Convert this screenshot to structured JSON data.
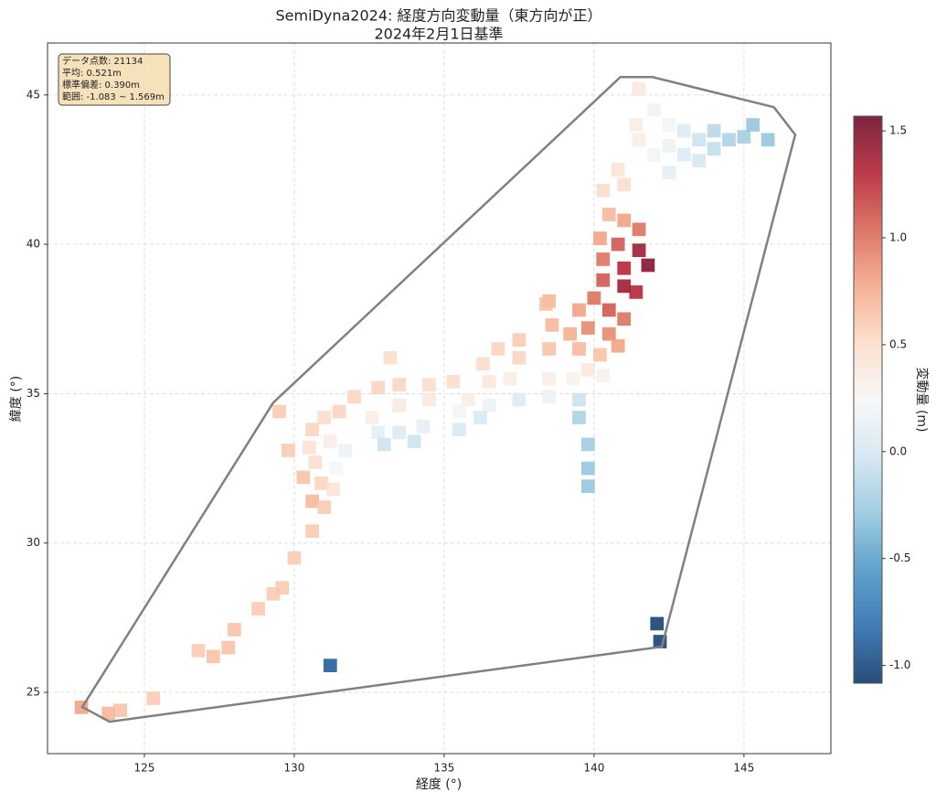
{
  "chart_data": {
    "type": "scatter",
    "title": "SemiDyna2024: 経度方向変動量（東方向が正）",
    "subtitle": "2024年2月1日基準",
    "xlabel": "経度 (°)",
    "ylabel": "緯度 (°)",
    "colorbar_label": "変動量 (m)",
    "stats": [
      "データ点数: 21134",
      "平均: 0.521m",
      "標準偏差: 0.390m",
      "範囲: -1.083 ~ 1.569m"
    ],
    "xlim": [
      121.77,
      147.9
    ],
    "ylim": [
      22.95,
      46.74
    ],
    "xticks": [
      125,
      130,
      135,
      140,
      145
    ],
    "yticks": [
      25,
      30,
      35,
      40,
      45
    ],
    "grid": true,
    "clim": [
      -1.083,
      1.569
    ],
    "cticks": [
      -1.0,
      -0.5,
      0.0,
      0.5,
      1.0,
      1.5
    ],
    "colormap": [
      "#053061",
      "#2166ac",
      "#4393c3",
      "#92c5de",
      "#d1e5f0",
      "#f7f7f7",
      "#fddbc7",
      "#f4a582",
      "#d6604d",
      "#b2182b",
      "#67001f"
    ],
    "hull": {
      "color": "#808080",
      "x": [
        122.93,
        123.84,
        142.26,
        146.71,
        146.0,
        141.95,
        140.88,
        129.3
      ],
      "y": [
        24.51,
        24.02,
        26.53,
        43.67,
        44.59,
        45.6,
        45.6,
        34.7
      ]
    },
    "series": [
      {
        "x": [
          141.5,
          142,
          142.5,
          141.5,
          142,
          142.5,
          143,
          143,
          143.5,
          144,
          144.5,
          145,
          145.3,
          143.5,
          140.8,
          141,
          140.3,
          142.5,
          144,
          145.8,
          141.4,
          140.5,
          141,
          141.5,
          140.2,
          140.8,
          141.5,
          141.8,
          141,
          140.3,
          140.3,
          141,
          141.4,
          140,
          140.5,
          141,
          139.5,
          138.5,
          139.8,
          140.5,
          140.8,
          139.2,
          138.6,
          140.2,
          139.5,
          138.5,
          137.5,
          139.8,
          140.3,
          139.3,
          138.5,
          137.5,
          136.8,
          136.3,
          137.2,
          136.5,
          138.5,
          139.5,
          137.5,
          136.5,
          136.2,
          135.8,
          135.3,
          134.5,
          133.5,
          132.8,
          132,
          131.5,
          133.5,
          134.5,
          135.5,
          135.5,
          134.3,
          133.5,
          132.8,
          133,
          134,
          132.6,
          131,
          130.6,
          131.2,
          131.7,
          131.4,
          130.5,
          130.7,
          130.3,
          130.9,
          131.3,
          130.6,
          131,
          129.8,
          129.5,
          133.2,
          138.4,
          139.5,
          139.8,
          139.8,
          139.8,
          130.6,
          130,
          129.6,
          129.3,
          128.8,
          128,
          127.8,
          127.3,
          126.8,
          125.3,
          124.2,
          123.8,
          122.9,
          131.2,
          142.1,
          142.2
        ],
        "y": [
          45.2,
          44.5,
          44,
          43.5,
          43,
          43.3,
          43.8,
          43,
          43.5,
          43.8,
          43.5,
          43.6,
          44,
          42.8,
          42.5,
          42,
          41.8,
          42.4,
          43.2,
          43.5,
          44,
          41,
          40.8,
          40.5,
          40.2,
          40,
          39.8,
          39.3,
          39.2,
          39.5,
          38.8,
          38.6,
          38.4,
          38.2,
          37.8,
          37.5,
          37.8,
          38.1,
          37.2,
          37,
          36.6,
          37.0,
          37.3,
          36.3,
          36.5,
          36.5,
          36.8,
          35.8,
          35.6,
          35.5,
          35.5,
          36.2,
          36.5,
          36,
          35.5,
          35.4,
          34.9,
          34.8,
          34.8,
          34.6,
          34.2,
          34.8,
          35.4,
          35.3,
          35.3,
          35.2,
          34.9,
          34.4,
          34.6,
          34.8,
          34.4,
          33.8,
          33.9,
          33.7,
          33.7,
          33.3,
          33.4,
          34.2,
          34.2,
          33.8,
          33.4,
          33.1,
          32.5,
          33.2,
          32.7,
          32.2,
          32.0,
          31.8,
          31.4,
          31.2,
          33.1,
          34.4,
          36.2,
          38.0,
          34.2,
          33.3,
          32.5,
          31.9,
          30.4,
          29.5,
          28.5,
          28.3,
          27.8,
          27.1,
          26.5,
          26.2,
          26.4,
          24.8,
          24.4,
          24.3,
          24.5,
          25.9,
          27.3,
          26.7
        ],
        "values": [
          0.4,
          0.3,
          0.2,
          0.35,
          0.2,
          0.15,
          0.05,
          0.05,
          -0.05,
          -0.15,
          -0.2,
          -0.25,
          -0.3,
          0.0,
          0.45,
          0.5,
          0.5,
          0.1,
          -0.1,
          -0.3,
          0.35,
          0.7,
          0.8,
          1.0,
          0.8,
          1.1,
          1.4,
          1.5,
          1.3,
          1.0,
          1.1,
          1.4,
          1.3,
          1.0,
          1.1,
          1.0,
          0.8,
          0.7,
          0.9,
          0.9,
          0.8,
          0.75,
          0.7,
          0.65,
          0.7,
          0.65,
          0.6,
          0.4,
          0.3,
          0.3,
          0.35,
          0.55,
          0.55,
          0.5,
          0.35,
          0.4,
          0.15,
          -0.05,
          0.05,
          0.15,
          0.0,
          0.35,
          0.5,
          0.5,
          0.55,
          0.55,
          0.55,
          0.55,
          0.4,
          0.4,
          0.2,
          0.0,
          0.1,
          0.05,
          0.1,
          -0.05,
          -0.05,
          0.35,
          0.5,
          0.55,
          0.35,
          0.15,
          0.25,
          0.45,
          0.5,
          0.65,
          0.55,
          0.45,
          0.7,
          0.6,
          0.6,
          0.6,
          0.5,
          0.65,
          -0.2,
          -0.25,
          -0.3,
          -0.3,
          0.6,
          0.6,
          0.6,
          0.6,
          0.6,
          0.65,
          0.65,
          0.65,
          0.6,
          0.6,
          0.65,
          0.7,
          0.8,
          -0.9,
          -1.05,
          -1.05
        ]
      }
    ]
  }
}
